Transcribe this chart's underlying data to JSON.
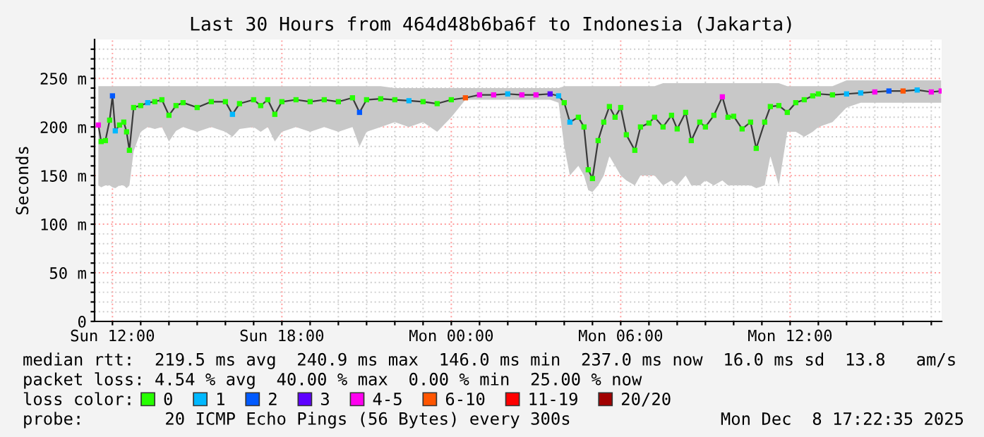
{
  "chart_data": {
    "type": "line",
    "title": "Last 30 Hours from 464d48b6ba6f to Indonesia (Jakarta)",
    "ylabel": "Seconds",
    "legend_title": "loss color:",
    "legend": "bottom",
    "grid": true,
    "xlim": [
      "2025-12-07T11:22",
      "2025-12-08T17:22"
    ],
    "xticks": [
      {
        "value": "2025-12-07T12:00",
        "label": "Sun 12:00"
      },
      {
        "value": "2025-12-07T13:00",
        "label": null
      },
      {
        "value": "2025-12-07T14:00",
        "label": null
      },
      {
        "value": "2025-12-07T15:00",
        "label": null
      },
      {
        "value": "2025-12-07T16:00",
        "label": null
      },
      {
        "value": "2025-12-07T17:00",
        "label": null
      },
      {
        "value": "2025-12-07T18:00",
        "label": "Sun 18:00"
      },
      {
        "value": "2025-12-07T19:00",
        "label": null
      },
      {
        "value": "2025-12-07T20:00",
        "label": null
      },
      {
        "value": "2025-12-07T21:00",
        "label": null
      },
      {
        "value": "2025-12-07T22:00",
        "label": null
      },
      {
        "value": "2025-12-07T23:00",
        "label": null
      },
      {
        "value": "2025-12-08T00:00",
        "label": "Mon 00:00"
      },
      {
        "value": "2025-12-08T01:00",
        "label": null
      },
      {
        "value": "2025-12-08T02:00",
        "label": null
      },
      {
        "value": "2025-12-08T03:00",
        "label": null
      },
      {
        "value": "2025-12-08T04:00",
        "label": null
      },
      {
        "value": "2025-12-08T05:00",
        "label": null
      },
      {
        "value": "2025-12-08T06:00",
        "label": "Mon 06:00"
      },
      {
        "value": "2025-12-08T07:00",
        "label": null
      },
      {
        "value": "2025-12-08T08:00",
        "label": null
      },
      {
        "value": "2025-12-08T09:00",
        "label": null
      },
      {
        "value": "2025-12-08T10:00",
        "label": null
      },
      {
        "value": "2025-12-08T11:00",
        "label": null
      },
      {
        "value": "2025-12-08T12:00",
        "label": "Mon 12:00"
      },
      {
        "value": "2025-12-08T13:00",
        "label": null
      },
      {
        "value": "2025-12-08T14:00",
        "label": null
      },
      {
        "value": "2025-12-08T15:00",
        "label": null
      },
      {
        "value": "2025-12-08T16:00",
        "label": null
      },
      {
        "value": "2025-12-08T17:00",
        "label": null
      }
    ],
    "ylim": [
      0,
      290
    ],
    "yticks": [
      0,
      {
        "value": 10,
        "label": null
      },
      {
        "value": 20,
        "label": null
      },
      {
        "value": 30,
        "label": null
      },
      {
        "value": 40,
        "label": null
      },
      {
        "value": 50,
        "label": "50 m"
      },
      {
        "value": 60,
        "label": null
      },
      {
        "value": 70,
        "label": null
      },
      {
        "value": 80,
        "label": null
      },
      {
        "value": 90,
        "label": null
      },
      {
        "value": 100,
        "label": "100 m"
      },
      {
        "value": 110,
        "label": null
      },
      {
        "value": 120,
        "label": null
      },
      {
        "value": 130,
        "label": null
      },
      {
        "value": 140,
        "label": null
      },
      {
        "value": 150,
        "label": "150 m"
      },
      {
        "value": 160,
        "label": null
      },
      {
        "value": 170,
        "label": null
      },
      {
        "value": 180,
        "label": null
      },
      {
        "value": 190,
        "label": null
      },
      {
        "value": 200,
        "label": "200 m"
      },
      {
        "value": 210,
        "label": null
      },
      {
        "value": 220,
        "label": null
      },
      {
        "value": 230,
        "label": null
      },
      {
        "value": 240,
        "label": null
      },
      {
        "value": 250,
        "label": "250 m"
      },
      {
        "value": 260,
        "label": null
      },
      {
        "value": 270,
        "label": null
      },
      {
        "value": 280,
        "label": null
      }
    ],
    "annotations": [
      "median rtt:  219.5 ms avg  240.9 ms max  146.0 ms min  237.0 ms now  16.0 ms sd  13.8   am/s",
      "packet loss: 4.54 % avg  40.00 % max  0.00 % min  25.00 % now",
      "probe:        20 ICMP Echo Pings (56 Bytes) every 300s",
      "Mon Dec  8 17:22:35 2025"
    ],
    "series": [
      {
        "type": "line",
        "color": "#3a3a3a",
        "x": [
          "2025-12-07T11:30",
          "2025-12-07T11:36",
          "2025-12-07T11:45",
          "2025-12-07T11:54",
          "2025-12-07T12:00",
          "2025-12-07T12:06",
          "2025-12-07T12:15",
          "2025-12-07T12:24",
          "2025-12-07T12:30",
          "2025-12-07T12:36",
          "2025-12-07T12:45",
          "2025-12-07T13:00",
          "2025-12-07T13:15",
          "2025-12-07T13:30",
          "2025-12-07T13:45",
          "2025-12-07T14:00",
          "2025-12-07T14:15",
          "2025-12-07T14:30",
          "2025-12-07T15:00",
          "2025-12-07T15:30",
          "2025-12-07T16:00",
          "2025-12-07T16:15",
          "2025-12-07T16:30",
          "2025-12-07T17:00",
          "2025-12-07T17:15",
          "2025-12-07T17:30",
          "2025-12-07T17:45",
          "2025-12-07T18:00",
          "2025-12-07T18:30",
          "2025-12-07T19:00",
          "2025-12-07T19:30",
          "2025-12-07T20:00",
          "2025-12-07T20:30",
          "2025-12-07T20:45",
          "2025-12-07T21:00",
          "2025-12-07T21:30",
          "2025-12-07T22:00",
          "2025-12-07T22:30",
          "2025-12-07T23:00",
          "2025-12-07T23:30",
          "2025-12-08T00:00",
          "2025-12-08T00:30",
          "2025-12-08T01:00",
          "2025-12-08T01:30",
          "2025-12-08T02:00",
          "2025-12-08T02:30",
          "2025-12-08T03:00",
          "2025-12-08T03:30",
          "2025-12-08T03:48",
          "2025-12-08T04:00",
          "2025-12-08T04:12",
          "2025-12-08T04:30",
          "2025-12-08T04:42",
          "2025-12-08T04:51",
          "2025-12-08T05:00",
          "2025-12-08T05:12",
          "2025-12-08T05:24",
          "2025-12-08T05:36",
          "2025-12-08T05:48",
          "2025-12-08T06:00",
          "2025-12-08T06:12",
          "2025-12-08T06:30",
          "2025-12-08T06:42",
          "2025-12-08T07:00",
          "2025-12-08T07:12",
          "2025-12-08T07:30",
          "2025-12-08T07:48",
          "2025-12-08T08:00",
          "2025-12-08T08:18",
          "2025-12-08T08:30",
          "2025-12-08T08:48",
          "2025-12-08T09:00",
          "2025-12-08T09:18",
          "2025-12-08T09:36",
          "2025-12-08T09:48",
          "2025-12-08T10:00",
          "2025-12-08T10:18",
          "2025-12-08T10:36",
          "2025-12-08T10:48",
          "2025-12-08T11:06",
          "2025-12-08T11:18",
          "2025-12-08T11:36",
          "2025-12-08T11:54",
          "2025-12-08T12:12",
          "2025-12-08T12:30",
          "2025-12-08T12:48",
          "2025-12-08T13:00",
          "2025-12-08T13:30",
          "2025-12-08T14:00",
          "2025-12-08T14:30",
          "2025-12-08T15:00",
          "2025-12-08T15:30",
          "2025-12-08T16:00",
          "2025-12-08T16:30",
          "2025-12-08T17:00",
          "2025-12-08T17:21"
        ],
        "values": [
          202,
          185,
          186,
          207,
          232,
          196,
          202,
          205,
          195,
          176,
          220,
          222,
          225,
          226,
          228,
          212,
          222,
          225,
          220,
          226,
          226,
          213,
          224,
          228,
          222,
          228,
          213,
          226,
          228,
          226,
          228,
          226,
          230,
          215,
          228,
          229,
          228,
          227,
          226,
          224,
          228,
          230,
          233,
          233,
          234,
          233,
          233,
          234,
          232,
          225,
          205,
          210,
          200,
          156,
          147,
          186,
          205,
          221,
          210,
          220,
          192,
          176,
          200,
          204,
          210,
          200,
          212,
          198,
          215,
          186,
          205,
          200,
          212,
          231,
          210,
          211,
          198,
          205,
          178,
          205,
          221,
          222,
          215,
          225,
          228,
          232,
          234,
          233,
          234,
          235,
          236,
          237,
          237,
          238,
          236,
          237
        ],
        "lower": [
          140,
          138,
          140,
          140,
          138,
          137,
          140,
          140,
          137,
          140,
          175,
          195,
          200,
          198,
          200,
          185,
          196,
          200,
          195,
          200,
          195,
          190,
          198,
          200,
          195,
          200,
          185,
          195,
          200,
          195,
          200,
          195,
          200,
          180,
          195,
          200,
          205,
          200,
          205,
          195,
          210,
          228,
          228,
          228,
          228,
          228,
          228,
          228,
          225,
          180,
          150,
          160,
          150,
          135,
          133,
          140,
          150,
          170,
          160,
          150,
          145,
          140,
          150,
          150,
          150,
          140,
          145,
          140,
          150,
          140,
          140,
          145,
          140,
          145,
          140,
          140,
          140,
          140,
          137,
          140,
          170,
          140,
          195,
          195,
          190,
          195,
          200,
          205,
          220,
          225,
          225,
          225,
          225,
          225,
          225,
          225
        ],
        "upper": [
          242,
          242,
          242,
          242,
          242,
          242,
          242,
          242,
          242,
          242,
          242,
          242,
          242,
          242,
          242,
          242,
          242,
          242,
          242,
          242,
          242,
          242,
          242,
          242,
          242,
          242,
          242,
          242,
          242,
          242,
          242,
          242,
          242,
          242,
          242,
          242,
          240,
          240,
          240,
          240,
          240,
          240,
          240,
          240,
          240,
          240,
          240,
          240,
          240,
          242,
          242,
          242,
          242,
          242,
          242,
          242,
          242,
          242,
          242,
          242,
          242,
          242,
          242,
          242,
          242,
          245,
          245,
          245,
          245,
          245,
          245,
          245,
          245,
          245,
          245,
          245,
          245,
          245,
          245,
          245,
          245,
          245,
          242,
          242,
          242,
          242,
          242,
          242,
          248,
          248,
          248,
          248,
          248,
          248,
          248,
          248
        ]
      },
      {
        "type": "scatter",
        "name": "0",
        "color": "#26ff00",
        "marker": "square",
        "x": [
          "2025-12-07T11:36",
          "2025-12-07T11:45",
          "2025-12-07T11:54",
          "2025-12-07T12:15",
          "2025-12-07T12:24",
          "2025-12-07T12:30",
          "2025-12-07T12:36",
          "2025-12-07T12:45",
          "2025-12-07T13:00",
          "2025-12-07T13:30",
          "2025-12-07T13:45",
          "2025-12-07T14:00",
          "2025-12-07T14:15",
          "2025-12-07T14:30",
          "2025-12-07T15:00",
          "2025-12-07T15:30",
          "2025-12-07T16:00",
          "2025-12-07T16:30",
          "2025-12-07T17:00",
          "2025-12-07T17:15",
          "2025-12-07T17:30",
          "2025-12-07T17:45",
          "2025-12-07T18:00",
          "2025-12-07T18:30",
          "2025-12-07T19:00",
          "2025-12-07T19:30",
          "2025-12-07T20:00",
          "2025-12-07T20:30",
          "2025-12-07T21:00",
          "2025-12-07T21:30",
          "2025-12-07T22:00",
          "2025-12-07T23:00",
          "2025-12-07T23:30",
          "2025-12-08T00:00",
          "2025-12-08T04:00",
          "2025-12-08T04:30",
          "2025-12-08T04:42",
          "2025-12-08T04:51",
          "2025-12-08T05:00",
          "2025-12-08T05:12",
          "2025-12-08T05:24",
          "2025-12-08T05:36",
          "2025-12-08T05:48",
          "2025-12-08T06:00",
          "2025-12-08T06:12",
          "2025-12-08T06:30",
          "2025-12-08T06:42",
          "2025-12-08T07:00",
          "2025-12-08T07:12",
          "2025-12-08T07:30",
          "2025-12-08T07:48",
          "2025-12-08T08:00",
          "2025-12-08T08:18",
          "2025-12-08T08:30",
          "2025-12-08T08:48",
          "2025-12-08T09:00",
          "2025-12-08T09:18",
          "2025-12-08T09:48",
          "2025-12-08T10:00",
          "2025-12-08T10:18",
          "2025-12-08T10:36",
          "2025-12-08T10:48",
          "2025-12-08T11:06",
          "2025-12-08T11:18",
          "2025-12-08T11:36",
          "2025-12-08T11:54",
          "2025-12-08T12:12",
          "2025-12-08T12:30",
          "2025-12-08T12:48",
          "2025-12-08T13:00",
          "2025-12-08T13:30"
        ],
        "values": [
          185,
          186,
          207,
          202,
          205,
          195,
          176,
          220,
          222,
          226,
          228,
          212,
          222,
          225,
          220,
          226,
          226,
          224,
          228,
          222,
          228,
          213,
          226,
          228,
          226,
          228,
          226,
          230,
          228,
          229,
          228,
          226,
          224,
          228,
          225,
          210,
          200,
          156,
          147,
          186,
          205,
          221,
          210,
          220,
          192,
          176,
          200,
          204,
          210,
          200,
          212,
          198,
          215,
          186,
          205,
          200,
          212,
          210,
          211,
          198,
          205,
          178,
          205,
          221,
          222,
          215,
          225,
          228,
          232,
          234,
          233
        ]
      },
      {
        "type": "scatter",
        "name": "1",
        "color": "#00b8ff",
        "marker": "square",
        "x": [
          "2025-12-07T12:06",
          "2025-12-07T13:15",
          "2025-12-07T16:15",
          "2025-12-07T22:30",
          "2025-12-08T02:00",
          "2025-12-08T03:48",
          "2025-12-08T04:12",
          "2025-12-08T14:00",
          "2025-12-08T14:30",
          "2025-12-08T16:30"
        ],
        "values": [
          196,
          225,
          213,
          227,
          234,
          232,
          205,
          234,
          235,
          238
        ]
      },
      {
        "type": "scatter",
        "name": "2",
        "color": "#0059ff",
        "marker": "square",
        "x": [
          "2025-12-07T12:00",
          "2025-12-07T20:45",
          "2025-12-08T15:30"
        ],
        "values": [
          232,
          215,
          237
        ]
      },
      {
        "type": "scatter",
        "name": "3",
        "color": "#5e00ff",
        "marker": "square",
        "x": [
          "2025-12-08T03:30"
        ],
        "values": [
          234
        ]
      },
      {
        "type": "scatter",
        "name": "4-5",
        "color": "#ff00f0",
        "marker": "square",
        "x": [
          "2025-12-07T11:30",
          "2025-12-08T01:00",
          "2025-12-08T01:30",
          "2025-12-08T02:30",
          "2025-12-08T03:00",
          "2025-12-08T09:36",
          "2025-12-08T15:00",
          "2025-12-08T17:00",
          "2025-12-08T17:21"
        ],
        "values": [
          202,
          233,
          233,
          233,
          233,
          231,
          236,
          236,
          237
        ]
      },
      {
        "type": "scatter",
        "name": "6-10",
        "color": "#ff5500",
        "marker": "square",
        "x": [
          "2025-12-08T00:30",
          "2025-12-08T16:00"
        ],
        "values": [
          230,
          237
        ]
      },
      {
        "type": "scatter",
        "name": "11-19",
        "color": "#ff0000",
        "marker": "square"
      },
      {
        "type": "scatter",
        "name": "20/20",
        "color": "#a10000",
        "marker": "square"
      }
    ]
  }
}
